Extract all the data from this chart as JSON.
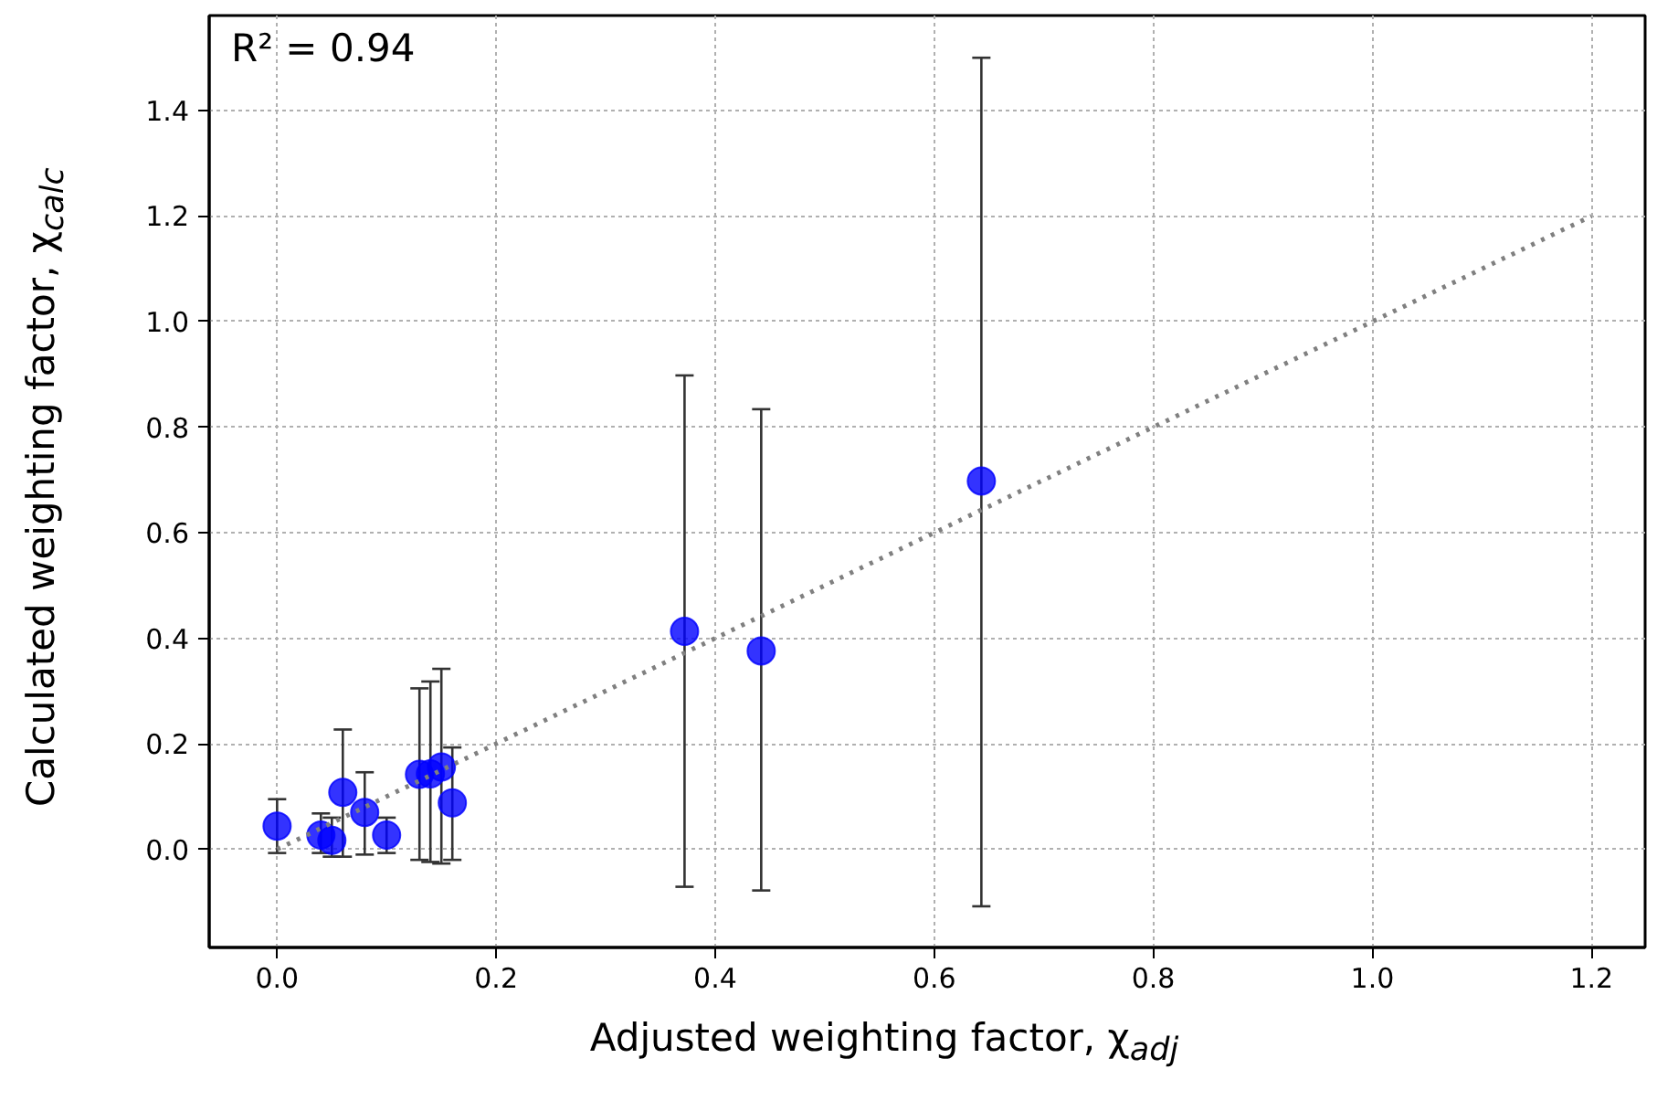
{
  "chart_data": {
    "type": "scatter",
    "xlabel": "Adjusted weighting factor, χ$_{adj}$",
    "ylabel": "Calculated weighting factor, χ$_{calc}$",
    "annotations": [
      "R² = 0.94"
    ],
    "xlim": [
      -0.062,
      1.249
    ],
    "ylim": [
      -0.186,
      1.58
    ],
    "xticks": [
      {
        "value": 0,
        "label": "0.0"
      },
      0.2,
      0.4,
      0.6,
      0.8,
      {
        "value": 1,
        "label": "1.0"
      },
      1.2
    ],
    "yticks": [
      {
        "value": 0,
        "label": "0.0"
      },
      0.2,
      0.4,
      0.6,
      0.8,
      {
        "value": 1,
        "label": "1.0"
      },
      1.2,
      1.4
    ],
    "grid": true,
    "series": [
      {
        "color": "#0000ff",
        "marker": "circle",
        "x": [
          0,
          0.04,
          0.05,
          0.06,
          0.08,
          0.1,
          0.13,
          0.14,
          0.15,
          0.16,
          0.372,
          0.442,
          0.643
        ],
        "values": [
          0.044,
          0.027,
          0.017,
          0.108,
          0.07,
          0.027,
          0.142,
          0.143,
          0.156,
          0.088,
          0.413,
          0.376,
          0.698
        ],
        "errors": [
          [
            -0.007,
            0.095
          ],
          [
            -0.007,
            0.068
          ],
          [
            -0.014,
            0.06
          ],
          [
            -0.014,
            0.227
          ],
          [
            -0.01,
            0.146
          ],
          [
            -0.007,
            0.06
          ],
          [
            -0.02,
            0.305
          ],
          [
            -0.024,
            0.318
          ],
          [
            -0.027,
            0.342
          ],
          [
            -0.02,
            0.193
          ],
          [
            -0.071,
            0.898
          ],
          [
            -0.078,
            0.834
          ],
          [
            -0.108,
            1.5
          ]
        ]
      },
      {
        "type": "line",
        "color": "#808080",
        "line_style": "dotted",
        "marker": "none",
        "x": [
          0,
          1.2
        ],
        "values": [
          0,
          1.2
        ]
      }
    ]
  }
}
